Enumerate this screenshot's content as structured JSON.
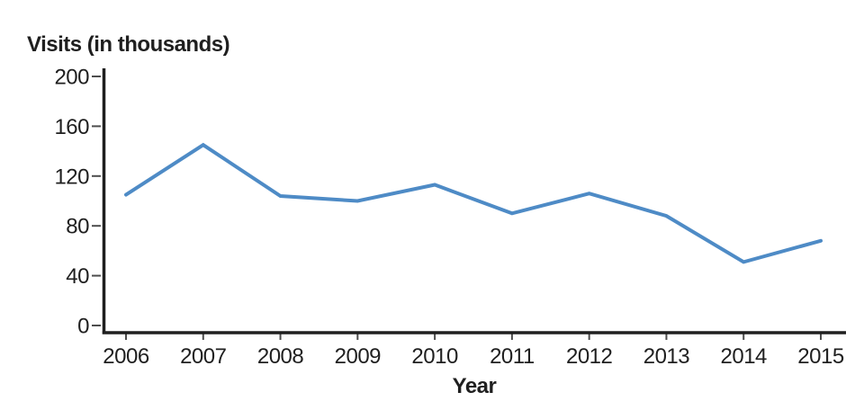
{
  "page": {
    "background_color": "#ffffff"
  },
  "chart_data": {
    "type": "line",
    "title": "Visits (in thousands)",
    "xlabel": "Year",
    "ylabel": "Visits (in thousands)",
    "x": [
      "2006",
      "2007",
      "2008",
      "2009",
      "2010",
      "2011",
      "2012",
      "2013",
      "2014",
      "2015"
    ],
    "series": [
      {
        "name": "Visits (in thousands)",
        "values": [
          105,
          145,
          104,
          100,
          113,
          90,
          106,
          88,
          51,
          68
        ]
      }
    ],
    "ylim": [
      0,
      200
    ],
    "yticks": [
      0,
      40,
      80,
      120,
      160,
      200
    ],
    "grid": false,
    "legend": false,
    "colors": {
      "line": "#4E8BC6",
      "axis": "#1f1f1f",
      "tick": "#4d4d4d",
      "text": "#1f1f1f"
    }
  }
}
